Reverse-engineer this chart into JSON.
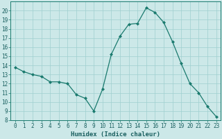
{
  "x": [
    0,
    1,
    2,
    3,
    4,
    5,
    6,
    7,
    8,
    9,
    10,
    11,
    12,
    13,
    14,
    15,
    16,
    17,
    18,
    19,
    20,
    21,
    22,
    23
  ],
  "y": [
    13.8,
    13.3,
    13.0,
    12.8,
    12.2,
    12.2,
    12.0,
    10.8,
    10.4,
    9.0,
    11.4,
    15.2,
    17.2,
    18.5,
    18.6,
    20.3,
    19.8,
    18.7,
    16.6,
    14.2,
    12.0,
    11.0,
    9.5,
    8.4
  ],
  "line_color": "#1a7a6e",
  "marker": "D",
  "marker_size": 2,
  "bg_color": "#cce8e8",
  "grid_color": "#9fcfcf",
  "xlabel": "Humidex (Indice chaleur)",
  "xlim": [
    -0.5,
    23.5
  ],
  "ylim": [
    8,
    21
  ],
  "yticks": [
    8,
    9,
    10,
    11,
    12,
    13,
    14,
    15,
    16,
    17,
    18,
    19,
    20
  ],
  "xticks": [
    0,
    1,
    2,
    3,
    4,
    5,
    6,
    7,
    8,
    9,
    10,
    11,
    12,
    13,
    14,
    15,
    16,
    17,
    18,
    19,
    20,
    21,
    22,
    23
  ],
  "tick_color": "#1a7a6e",
  "label_color": "#1a6060",
  "tick_fontsize": 5.5,
  "xlabel_fontsize": 6.5
}
